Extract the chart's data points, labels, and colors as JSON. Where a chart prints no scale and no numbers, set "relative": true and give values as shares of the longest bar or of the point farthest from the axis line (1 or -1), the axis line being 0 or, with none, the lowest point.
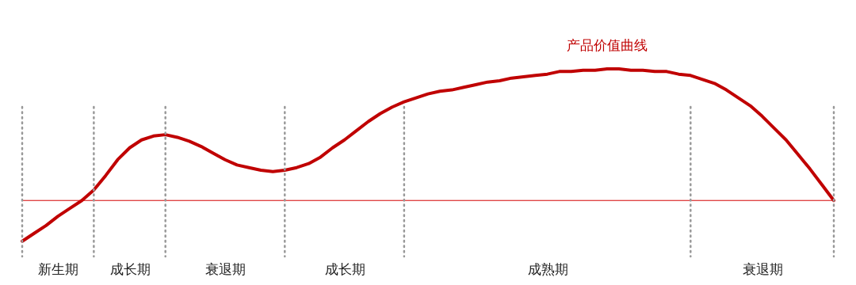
{
  "chart_data": {
    "type": "line",
    "relative": true,
    "legend": false,
    "marker": "none",
    "line_style": "solid",
    "ref_lines": [
      {
        "axis": "y",
        "value": 0,
        "color": "#d40000"
      }
    ],
    "categories": [
      null,
      null,
      null,
      "新生期",
      null,
      null,
      null,
      null,
      null,
      "成长期",
      null,
      null,
      null,
      null,
      null,
      null,
      null,
      "衰退期",
      null,
      null,
      null,
      null,
      null,
      null,
      null,
      null,
      null,
      "成长期",
      null,
      null,
      null,
      null,
      null,
      null,
      null,
      null,
      null,
      null,
      null,
      null,
      null,
      null,
      null,
      null,
      "成熟期",
      null,
      null,
      null,
      null,
      null,
      null,
      null,
      null,
      null,
      null,
      null,
      null,
      null,
      null,
      null,
      null,
      null,
      "衰退期",
      null,
      null,
      null,
      null,
      null,
      null
    ],
    "series": [
      {
        "name": "产品价值曲线",
        "color": "#c00000",
        "values": [
          -0.31,
          -0.25,
          -0.19,
          -0.12,
          -0.06,
          0,
          0.08,
          0.19,
          0.31,
          0.4,
          0.46,
          0.49,
          0.5,
          0.48,
          0.45,
          0.41,
          0.36,
          0.31,
          0.27,
          0.25,
          0.23,
          0.22,
          0.23,
          0.25,
          0.28,
          0.33,
          0.4,
          0.46,
          0.53,
          0.6,
          0.66,
          0.71,
          0.75,
          0.78,
          0.81,
          0.83,
          0.84,
          0.86,
          0.88,
          0.9,
          0.91,
          0.93,
          0.94,
          0.95,
          0.96,
          0.98,
          0.98,
          0.99,
          0.99,
          1,
          1,
          0.99,
          0.99,
          0.98,
          0.98,
          0.96,
          0.95,
          0.92,
          0.89,
          0.84,
          0.78,
          0.72,
          0.64,
          0.55,
          0.46,
          0.35,
          0.24,
          0.12,
          0
        ]
      }
    ]
  }
}
